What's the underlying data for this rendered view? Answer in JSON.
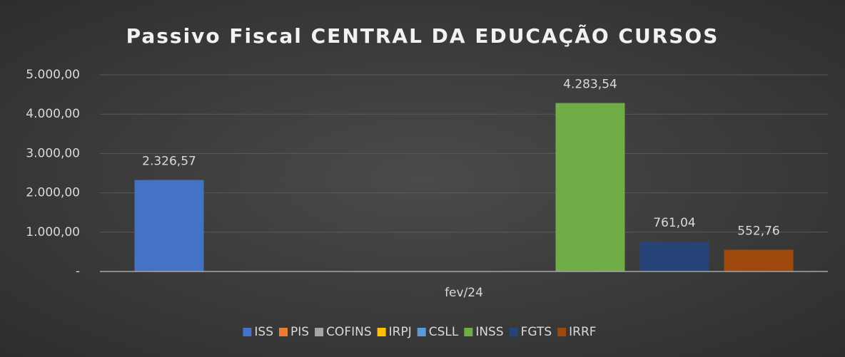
{
  "chart_data": {
    "type": "bar",
    "title": "Passivo Fiscal CENTRAL DA EDUCAÇÃO CURSOS",
    "categories": [
      "fev/24"
    ],
    "series": [
      {
        "name": "ISS",
        "color": "#4472c4",
        "values": [
          2326.57
        ],
        "value_labels": [
          "2.326,57"
        ]
      },
      {
        "name": "PIS",
        "color": "#ed7d31",
        "values": [
          null
        ]
      },
      {
        "name": "COFINS",
        "color": "#a5a5a5",
        "values": [
          null
        ]
      },
      {
        "name": "IRPJ",
        "color": "#ffc000",
        "values": [
          null
        ]
      },
      {
        "name": "CSLL",
        "color": "#5b9bd5",
        "values": [
          null
        ]
      },
      {
        "name": "INSS",
        "color": "#70ad47",
        "values": [
          4283.54
        ],
        "value_labels": [
          "4.283,54"
        ]
      },
      {
        "name": "FGTS",
        "color": "#264478",
        "values": [
          761.04
        ],
        "value_labels": [
          "761,04"
        ]
      },
      {
        "name": "IRRF",
        "color": "#9e480e",
        "values": [
          552.76
        ],
        "value_labels": [
          "552,76"
        ]
      }
    ],
    "ylim": [
      0,
      5000
    ],
    "yticks": [
      {
        "value": 0,
        "label": "-"
      },
      {
        "value": 1000,
        "label": "1.000,00"
      },
      {
        "value": 2000,
        "label": "2.000,00"
      },
      {
        "value": 3000,
        "label": "3.000,00"
      },
      {
        "value": 4000,
        "label": "4.000,00"
      },
      {
        "value": 5000,
        "label": "5.000,00"
      }
    ],
    "grid": true,
    "legend": "bottom"
  }
}
